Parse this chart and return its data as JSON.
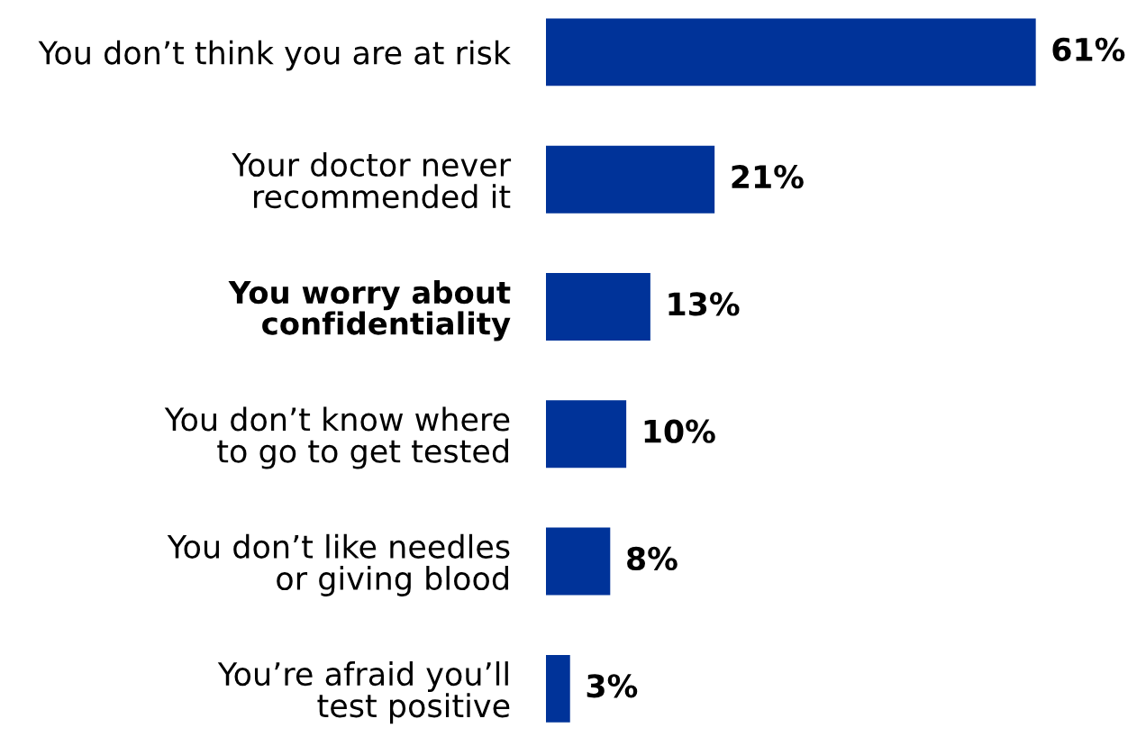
{
  "chart_data": {
    "type": "bar",
    "orientation": "horizontal",
    "categories": [
      "You don’t think you are at risk",
      "Your doctor never\nrecommended it",
      "You worry about\nconfidentiality",
      "You don’t know where\nto go to get tested",
      "You don’t like needles\nor giving blood",
      "You’re afraid you’ll\ntest positive"
    ],
    "values": [
      61,
      21,
      13,
      10,
      8,
      3
    ],
    "value_labels": [
      "61%",
      "21%",
      "13%",
      "10%",
      "8%",
      "3%"
    ],
    "color": "#003399",
    "grid": false,
    "legend": false
  }
}
